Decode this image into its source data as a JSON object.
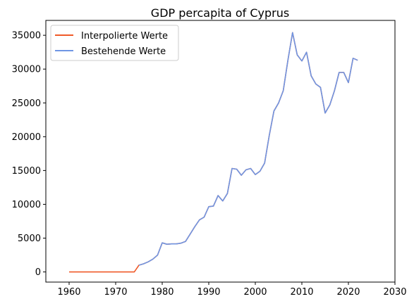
{
  "chart_data": {
    "type": "line",
    "title": "GDP percapita of Cyprus",
    "xlabel": "",
    "ylabel": "",
    "xlim": [
      1955,
      2030
    ],
    "ylim": [
      -1500,
      37200
    ],
    "xticks": [
      1960,
      1970,
      1980,
      1990,
      2000,
      2010,
      2020,
      2030
    ],
    "yticks": [
      0,
      5000,
      10000,
      15000,
      20000,
      25000,
      30000,
      35000
    ],
    "grid": false,
    "legend_position": "top-left",
    "series": [
      {
        "name": "Interpolierte Werte",
        "color": "#f05a28",
        "x": [
          1960,
          1961,
          1962,
          1963,
          1964,
          1965,
          1966,
          1967,
          1968,
          1969,
          1970,
          1971,
          1972,
          1973,
          1974,
          1975,
          1976,
          1977,
          1978,
          1979,
          1980,
          1981,
          1982,
          1983,
          1984,
          1985,
          1986,
          1987,
          1988,
          1989,
          1990,
          1991,
          1992,
          1993,
          1994,
          1995,
          1996,
          1997,
          1998,
          1999,
          2000,
          2001,
          2002,
          2003,
          2004,
          2005,
          2006,
          2007,
          2008,
          2009,
          2010,
          2011,
          2012,
          2013,
          2014,
          2015,
          2016,
          2017,
          2018,
          2019,
          2020,
          2021,
          2022
        ],
        "values": [
          0,
          0,
          0,
          0,
          0,
          0,
          0,
          0,
          0,
          0,
          0,
          0,
          0,
          0,
          0,
          1000,
          1200,
          1500,
          1900,
          2500,
          4300,
          4100,
          4150,
          4150,
          4250,
          4500,
          5600,
          6700,
          7700,
          8100,
          9650,
          9750,
          11300,
          10500,
          11600,
          15300,
          15200,
          14300,
          15100,
          15300,
          14400,
          14900,
          16100,
          20200,
          23800,
          25000,
          26800,
          31300,
          35400,
          32100,
          31200,
          32500,
          29000,
          27800,
          27300,
          23500,
          24700,
          26800,
          29500,
          29500,
          28000,
          31600,
          31300
        ]
      },
      {
        "name": "Bestehende Werte",
        "color": "#6f96e4",
        "x": [
          1975,
          1976,
          1977,
          1978,
          1979,
          1980,
          1981,
          1982,
          1983,
          1984,
          1985,
          1986,
          1987,
          1988,
          1989,
          1990,
          1991,
          1992,
          1993,
          1994,
          1995,
          1996,
          1997,
          1998,
          1999,
          2000,
          2001,
          2002,
          2003,
          2004,
          2005,
          2006,
          2007,
          2008,
          2009,
          2010,
          2011,
          2012,
          2013,
          2014,
          2015,
          2016,
          2017,
          2018,
          2019,
          2020,
          2021,
          2022
        ],
        "values": [
          1000,
          1200,
          1500,
          1900,
          2500,
          4300,
          4100,
          4150,
          4150,
          4250,
          4500,
          5600,
          6700,
          7700,
          8100,
          9650,
          9750,
          11300,
          10500,
          11600,
          15300,
          15200,
          14300,
          15100,
          15300,
          14400,
          14900,
          16100,
          20200,
          23800,
          25000,
          26800,
          31300,
          35400,
          32100,
          31200,
          32500,
          29000,
          27800,
          27300,
          23500,
          24700,
          26800,
          29500,
          29500,
          28000,
          31600,
          31300
        ]
      }
    ]
  }
}
